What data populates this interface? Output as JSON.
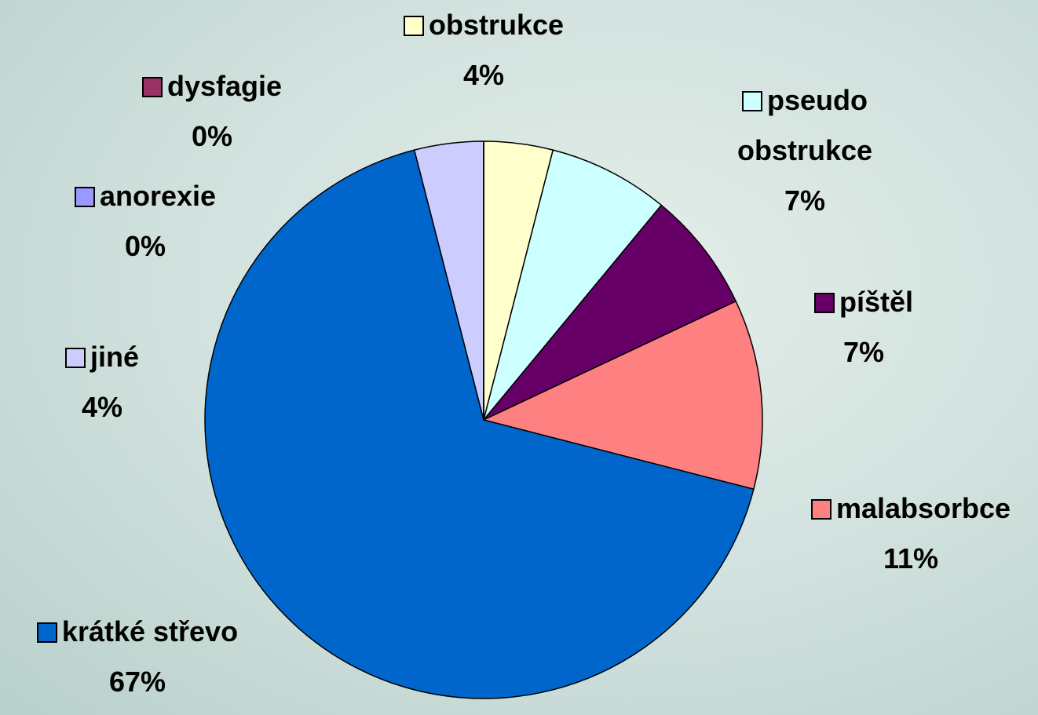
{
  "chart_data": {
    "type": "pie",
    "categories": [
      "obstrukce",
      "pseudo obstrukce",
      "píštěl",
      "malabsorbce",
      "krátké střevo",
      "jiné",
      "anorexie",
      "dysfagie"
    ],
    "values": [
      4,
      7,
      7,
      11,
      67,
      4,
      0,
      0
    ],
    "value_labels": [
      "4%",
      "7%",
      "7%",
      "11%",
      "67%",
      "4%",
      "0%",
      "0%"
    ],
    "colors": [
      "#ffffcc",
      "#ccffff",
      "#660066",
      "#ff8080",
      "#0066cc",
      "#ccccff",
      "#9999ff",
      "#993366"
    ]
  }
}
